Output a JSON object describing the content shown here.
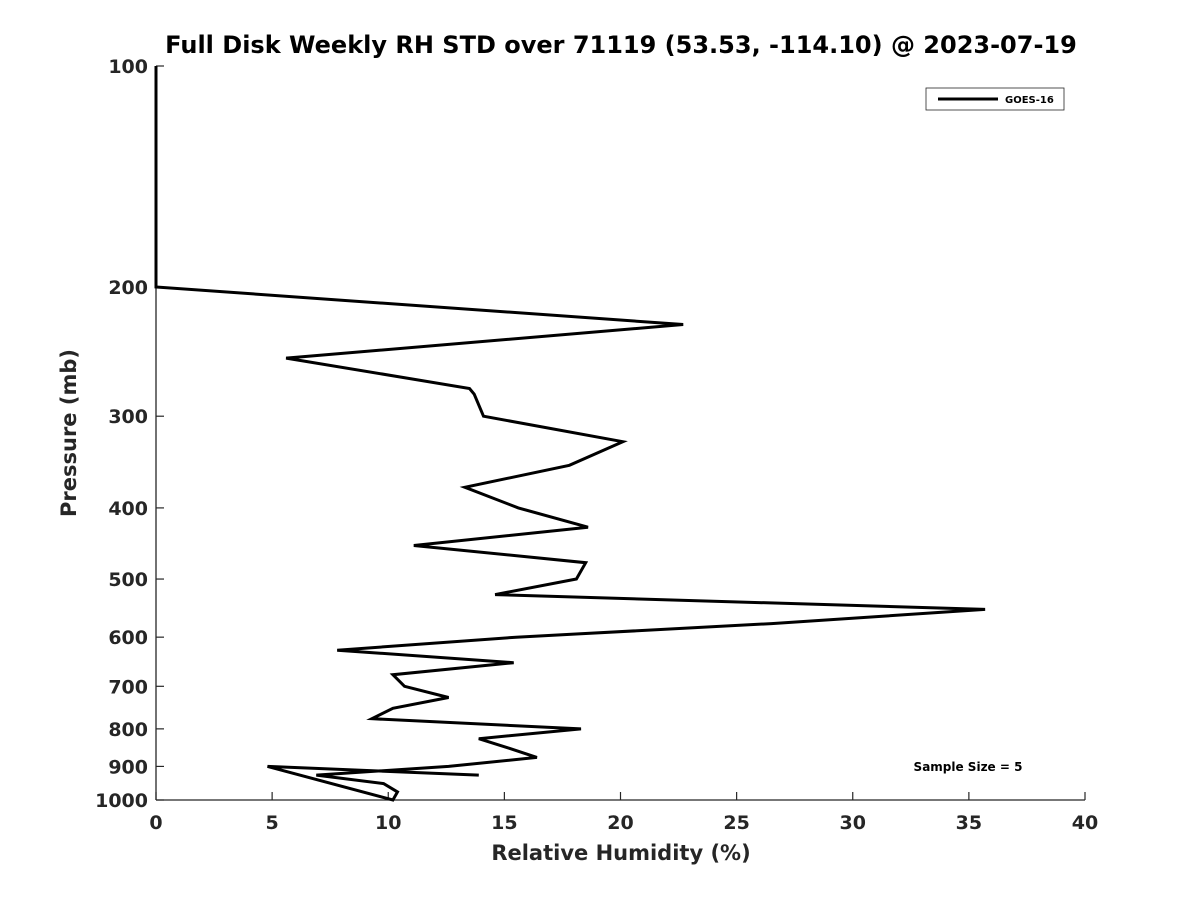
{
  "chart_data": {
    "type": "line",
    "title": "Full Disk Weekly RH STD over 71119 (53.53, -114.10) @ 2023-07-19",
    "xlabel": "Relative Humidity (%)",
    "ylabel": "Pressure (mb)",
    "xlim": [
      0,
      40
    ],
    "ylim": [
      100,
      1000
    ],
    "y_scale": "log",
    "y_inverted": true,
    "xticks": [
      0,
      5,
      10,
      15,
      20,
      25,
      30,
      35,
      40
    ],
    "yticks": [
      100,
      200,
      300,
      400,
      500,
      600,
      700,
      800,
      900,
      1000
    ],
    "grid": false,
    "legend_position": "top-right",
    "series": [
      {
        "name": "GOES-16",
        "color": "#000000",
        "points": [
          {
            "p": 100,
            "rh": 0
          },
          {
            "p": 150,
            "rh": 0
          },
          {
            "p": 200,
            "rh": 0
          },
          {
            "p": 225,
            "rh": 22.7
          },
          {
            "p": 250,
            "rh": 5.6
          },
          {
            "p": 275,
            "rh": 13.5
          },
          {
            "p": 280,
            "rh": 13.7
          },
          {
            "p": 300,
            "rh": 14.1
          },
          {
            "p": 325,
            "rh": 20.1
          },
          {
            "p": 350,
            "rh": 17.8
          },
          {
            "p": 375,
            "rh": 13.3
          },
          {
            "p": 400,
            "rh": 15.6
          },
          {
            "p": 425,
            "rh": 18.6
          },
          {
            "p": 450,
            "rh": 11.1
          },
          {
            "p": 475,
            "rh": 18.5
          },
          {
            "p": 500,
            "rh": 18.1
          },
          {
            "p": 525,
            "rh": 14.6
          },
          {
            "p": 550,
            "rh": 35.7
          },
          {
            "p": 575,
            "rh": 26.5
          },
          {
            "p": 600,
            "rh": 15.5
          },
          {
            "p": 625,
            "rh": 7.8
          },
          {
            "p": 650,
            "rh": 15.4
          },
          {
            "p": 675,
            "rh": 10.2
          },
          {
            "p": 700,
            "rh": 10.7
          },
          {
            "p": 725,
            "rh": 12.6
          },
          {
            "p": 750,
            "rh": 10.2
          },
          {
            "p": 775,
            "rh": 9.3
          },
          {
            "p": 800,
            "rh": 18.3
          },
          {
            "p": 825,
            "rh": 13.9
          },
          {
            "p": 850,
            "rh": 15.2
          },
          {
            "p": 875,
            "rh": 16.4
          },
          {
            "p": 900,
            "rh": 12.6
          },
          {
            "p": 925,
            "rh": 6.9
          },
          {
            "p": 950,
            "rh": 9.8
          },
          {
            "p": 975,
            "rh": 10.4
          },
          {
            "p": 1000,
            "rh": 10.2
          },
          {
            "p": 900,
            "rh": 4.8
          },
          {
            "p": 925,
            "rh": 13.9
          }
        ]
      }
    ],
    "annotations": [
      {
        "text": "Sample Size = 5",
        "position": "bottom-right"
      }
    ]
  }
}
